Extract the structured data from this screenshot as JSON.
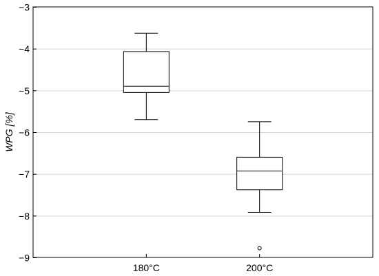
{
  "chart_data": {
    "type": "box",
    "ylabel": "WPG [%]",
    "xlabel": "",
    "ylim": [
      -9,
      -3
    ],
    "yticks": [
      -3,
      -4,
      -5,
      -6,
      -7,
      -8,
      -9
    ],
    "ytick_labels": [
      "−3",
      "−4",
      "−5",
      "−6",
      "−7",
      "−8",
      "−9"
    ],
    "grid": true,
    "categories": [
      "180°C",
      "200°C"
    ],
    "boxes": [
      {
        "category": "180°C",
        "whisker_low": -5.7,
        "q1": -5.05,
        "median": -4.9,
        "q3": -4.07,
        "whisker_high": -3.63,
        "outliers": []
      },
      {
        "category": "200°C",
        "whisker_low": -7.92,
        "q1": -7.38,
        "median": -6.93,
        "q3": -6.6,
        "whisker_high": -5.75,
        "outliers": [
          -8.78
        ]
      }
    ]
  }
}
